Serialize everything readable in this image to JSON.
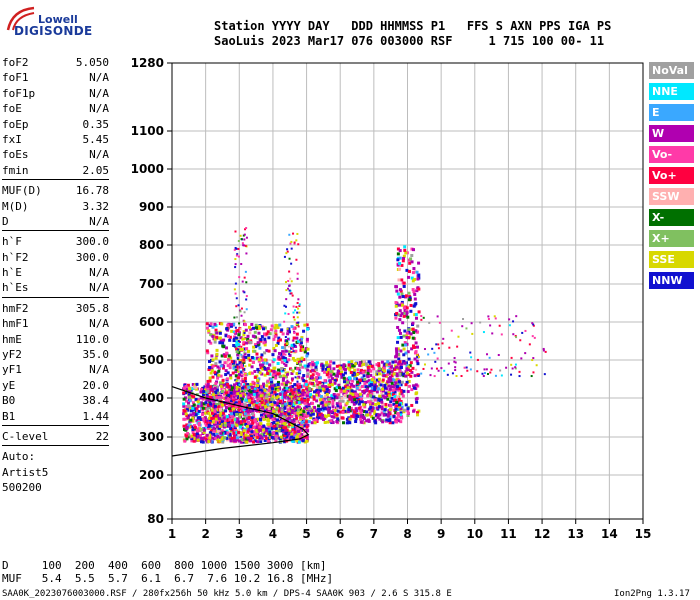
{
  "logo": {
    "line1": "Lowell",
    "line2": "DIGISONDE"
  },
  "header": {
    "line1": "Station YYYY DAY   DDD HHMMSS P1   FFS S AXN PPS IGA PS",
    "line2": "SaoLuis 2023 Mar17 076 003000 RSF     1 715 100 00- 11"
  },
  "params": [
    {
      "k": "foF2",
      "v": "5.050"
    },
    {
      "k": "foF1",
      "v": "N/A"
    },
    {
      "k": "foF1p",
      "v": "N/A"
    },
    {
      "k": "foE",
      "v": "N/A"
    },
    {
      "k": "foEp",
      "v": "0.35"
    },
    {
      "k": "fxI",
      "v": "5.45"
    },
    {
      "k": "foEs",
      "v": "N/A"
    },
    {
      "k": "fmin",
      "v": "2.05"
    },
    {
      "sep": true
    },
    {
      "k": "MUF(D)",
      "v": "16.78"
    },
    {
      "k": "M(D)",
      "v": "3.32"
    },
    {
      "k": "D",
      "v": "N/A"
    },
    {
      "sep": true
    },
    {
      "k": "h`F",
      "v": "300.0"
    },
    {
      "k": "h`F2",
      "v": "300.0"
    },
    {
      "k": "h`E",
      "v": "N/A"
    },
    {
      "k": "h`Es",
      "v": "N/A"
    },
    {
      "sep": true
    },
    {
      "k": "hmF2",
      "v": "305.8"
    },
    {
      "k": "hmF1",
      "v": "N/A"
    },
    {
      "k": "hmE",
      "v": "110.0"
    },
    {
      "k": "yF2",
      "v": "35.0"
    },
    {
      "k": "yF1",
      "v": "N/A"
    },
    {
      "k": "yE",
      "v": "20.0"
    },
    {
      "k": "B0",
      "v": "38.4"
    },
    {
      "k": "B1",
      "v": "1.44"
    },
    {
      "sep": true
    },
    {
      "k": "C-level",
      "v": "22"
    },
    {
      "sep": true
    },
    {
      "k": "Auto:",
      "v": ""
    },
    {
      "k": "Artist5",
      "v": ""
    },
    {
      "k": "500200",
      "v": ""
    }
  ],
  "legend": [
    {
      "label": "NoVal",
      "color": "#a0a0a0"
    },
    {
      "label": "NNE",
      "color": "#00e8ff"
    },
    {
      "label": "E",
      "color": "#3aa8ff"
    },
    {
      "label": "W",
      "color": "#b000b0"
    },
    {
      "label": "Vo-",
      "color": "#ff3aa8"
    },
    {
      "label": "Vo+",
      "color": "#ff0040"
    },
    {
      "label": "SSW",
      "color": "#ffb0b0"
    },
    {
      "label": "X-",
      "color": "#007000"
    },
    {
      "label": "X+",
      "color": "#80c060"
    },
    {
      "label": "SSE",
      "color": "#d8d800"
    },
    {
      "label": "NNW",
      "color": "#1010d0"
    }
  ],
  "footer": {
    "d_row": "D     100  200  400  600  800 1000 1500 3000 [km]",
    "muf_row": "MUF   5.4  5.5  5.7  6.1  6.7  7.6 10.2 16.8 [MHz]",
    "info": "SAA0K_2023076003000.RSF / 280fx256h 50 kHz 5.0 km / DPS-4 SAA0K 903 / 2.6 S 315.8 E",
    "version": "Ion2Png 1.3.17"
  },
  "chart_data": {
    "type": "scatter",
    "x_ticks": [
      1,
      2,
      3,
      4,
      5,
      6,
      7,
      8,
      9,
      10,
      11,
      12,
      13,
      14,
      15
    ],
    "y_ticks": [
      80,
      200,
      300,
      400,
      500,
      600,
      700,
      800,
      900,
      1000,
      1100,
      1280
    ],
    "xlim": [
      1,
      15
    ],
    "ylim": [
      80,
      1280
    ],
    "grid": true,
    "y_scale": "nonlinear",
    "clusters": [
      {
        "name": "F-trace main",
        "x_range": [
          1.3,
          5.0
        ],
        "y_range": [
          290,
          440
        ],
        "density": "very high"
      },
      {
        "name": "F-trace spread",
        "x_range": [
          2.0,
          5.0
        ],
        "y_range": [
          300,
          600
        ],
        "density": "high"
      },
      {
        "name": "spread-F tail",
        "x_range": [
          5.0,
          7.8
        ],
        "y_range": [
          340,
          500
        ],
        "density": "high"
      },
      {
        "name": "spread column 3MHz",
        "x_range": [
          2.8,
          3.2
        ],
        "y_range": [
          400,
          850
        ],
        "density": "low"
      },
      {
        "name": "spread column 4.5MHz",
        "x_range": [
          4.3,
          4.8
        ],
        "y_range": [
          400,
          850
        ],
        "density": "low"
      },
      {
        "name": "8MHz column",
        "x_range": [
          7.6,
          8.3
        ],
        "y_range": [
          350,
          800
        ],
        "density": "medium"
      },
      {
        "name": "high-freq tail",
        "x_range": [
          8.2,
          12.1
        ],
        "y_range": [
          460,
          620
        ],
        "density": "low"
      }
    ],
    "profile_curve": [
      [
        1.0,
        250
      ],
      [
        2.5,
        270
      ],
      [
        4.0,
        285
      ],
      [
        4.8,
        295
      ],
      [
        5.05,
        305.8
      ],
      [
        4.9,
        320
      ],
      [
        4.0,
        360
      ],
      [
        2.0,
        400
      ],
      [
        1.0,
        430
      ]
    ]
  }
}
